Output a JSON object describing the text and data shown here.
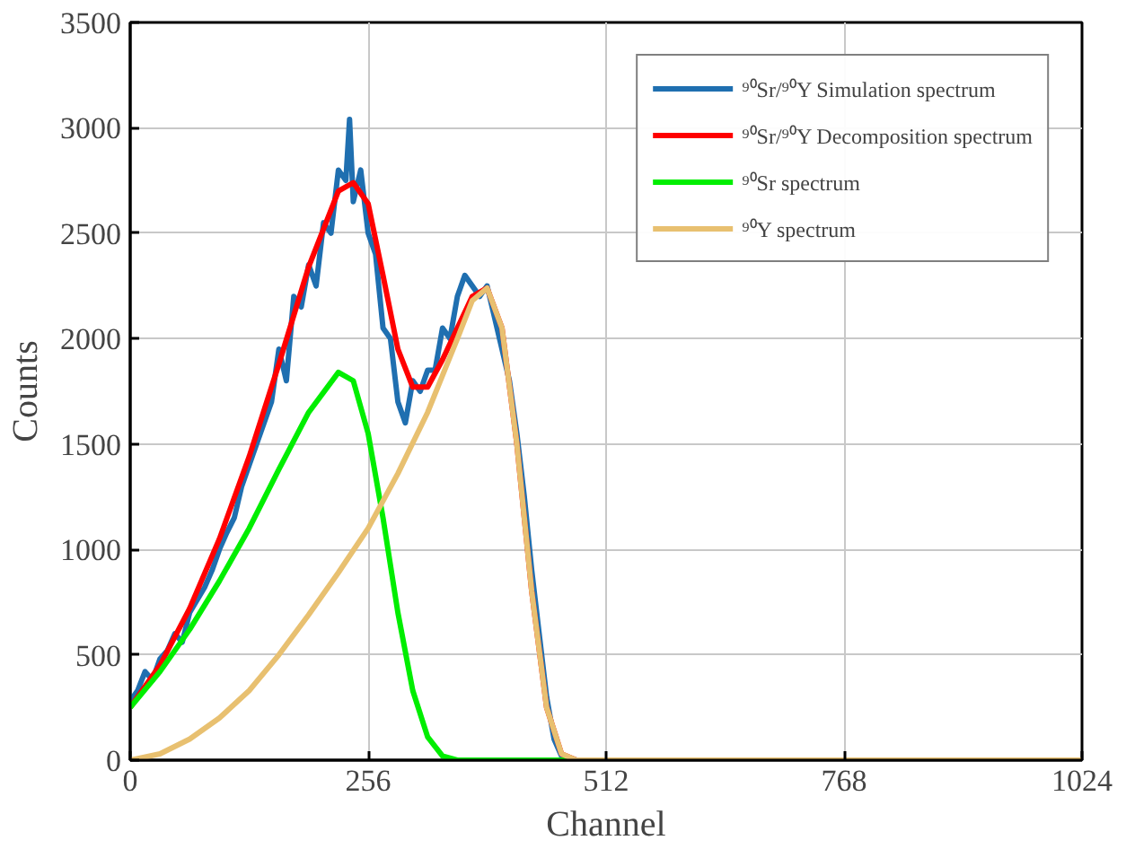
{
  "chart_data": {
    "type": "line",
    "xlabel": "Channel",
    "ylabel": "Counts",
    "xlim": [
      0,
      1024
    ],
    "ylim": [
      0,
      3500
    ],
    "xticks": [
      0,
      256,
      512,
      768,
      1024
    ],
    "yticks": [
      0,
      500,
      1000,
      1500,
      2000,
      2500,
      3000,
      3500
    ],
    "grid": true,
    "legend": "top right",
    "line_style": "solid",
    "marker": "none",
    "series": [
      {
        "name": "⁹⁰Sr/⁹⁰Y Simulation spectrum",
        "color": "#1f6fb0",
        "x": [
          0,
          8,
          16,
          24,
          32,
          40,
          48,
          56,
          64,
          72,
          80,
          88,
          96,
          104,
          112,
          120,
          128,
          136,
          144,
          152,
          160,
          168,
          176,
          184,
          192,
          200,
          208,
          216,
          224,
          232,
          236,
          240,
          248,
          256,
          264,
          272,
          280,
          288,
          296,
          304,
          312,
          320,
          328,
          336,
          344,
          352,
          360,
          368,
          376,
          384,
          392,
          400,
          408,
          416,
          424,
          432,
          440,
          448,
          456,
          464,
          480
        ],
        "values": [
          280,
          330,
          420,
          380,
          480,
          520,
          600,
          560,
          700,
          760,
          820,
          900,
          1000,
          1080,
          1150,
          1300,
          1400,
          1500,
          1600,
          1700,
          1950,
          1800,
          2200,
          2150,
          2350,
          2250,
          2550,
          2500,
          2800,
          2750,
          3040,
          2650,
          2800,
          2500,
          2400,
          2050,
          2000,
          1700,
          1600,
          1800,
          1750,
          1850,
          1850,
          2050,
          2000,
          2200,
          2300,
          2250,
          2200,
          2250,
          2100,
          1950,
          1800,
          1550,
          1250,
          900,
          600,
          300,
          100,
          20,
          0
        ]
      },
      {
        "name": "⁹⁰Sr/⁹⁰Y Decomposition spectrum",
        "color": "#ff0000",
        "x": [
          0,
          32,
          64,
          96,
          128,
          160,
          192,
          224,
          240,
          256,
          272,
          288,
          304,
          320,
          336,
          352,
          368,
          384,
          400,
          416,
          432,
          448,
          464,
          480
        ],
        "values": [
          250,
          450,
          720,
          1050,
          1440,
          1880,
          2340,
          2700,
          2740,
          2640,
          2300,
          1950,
          1770,
          1770,
          1900,
          2050,
          2200,
          2240,
          2050,
          1500,
          800,
          250,
          30,
          0
        ]
      },
      {
        "name": "⁹⁰Sr spectrum",
        "color": "#00ee00",
        "x": [
          0,
          32,
          64,
          96,
          128,
          160,
          192,
          224,
          240,
          256,
          272,
          288,
          304,
          320,
          336,
          352,
          512,
          768,
          1024
        ],
        "values": [
          250,
          420,
          620,
          850,
          1100,
          1380,
          1650,
          1840,
          1800,
          1550,
          1150,
          700,
          330,
          110,
          20,
          0,
          0,
          0,
          0
        ]
      },
      {
        "name": "⁹⁰Y spectrum",
        "color": "#e8c070",
        "x": [
          0,
          32,
          64,
          96,
          128,
          160,
          192,
          224,
          256,
          288,
          320,
          352,
          368,
          384,
          400,
          416,
          432,
          448,
          464,
          480,
          512,
          768,
          1024
        ],
        "values": [
          0,
          30,
          100,
          200,
          330,
          500,
          690,
          890,
          1100,
          1360,
          1650,
          2000,
          2180,
          2240,
          2050,
          1500,
          800,
          250,
          30,
          0,
          0,
          0,
          0
        ]
      }
    ]
  }
}
